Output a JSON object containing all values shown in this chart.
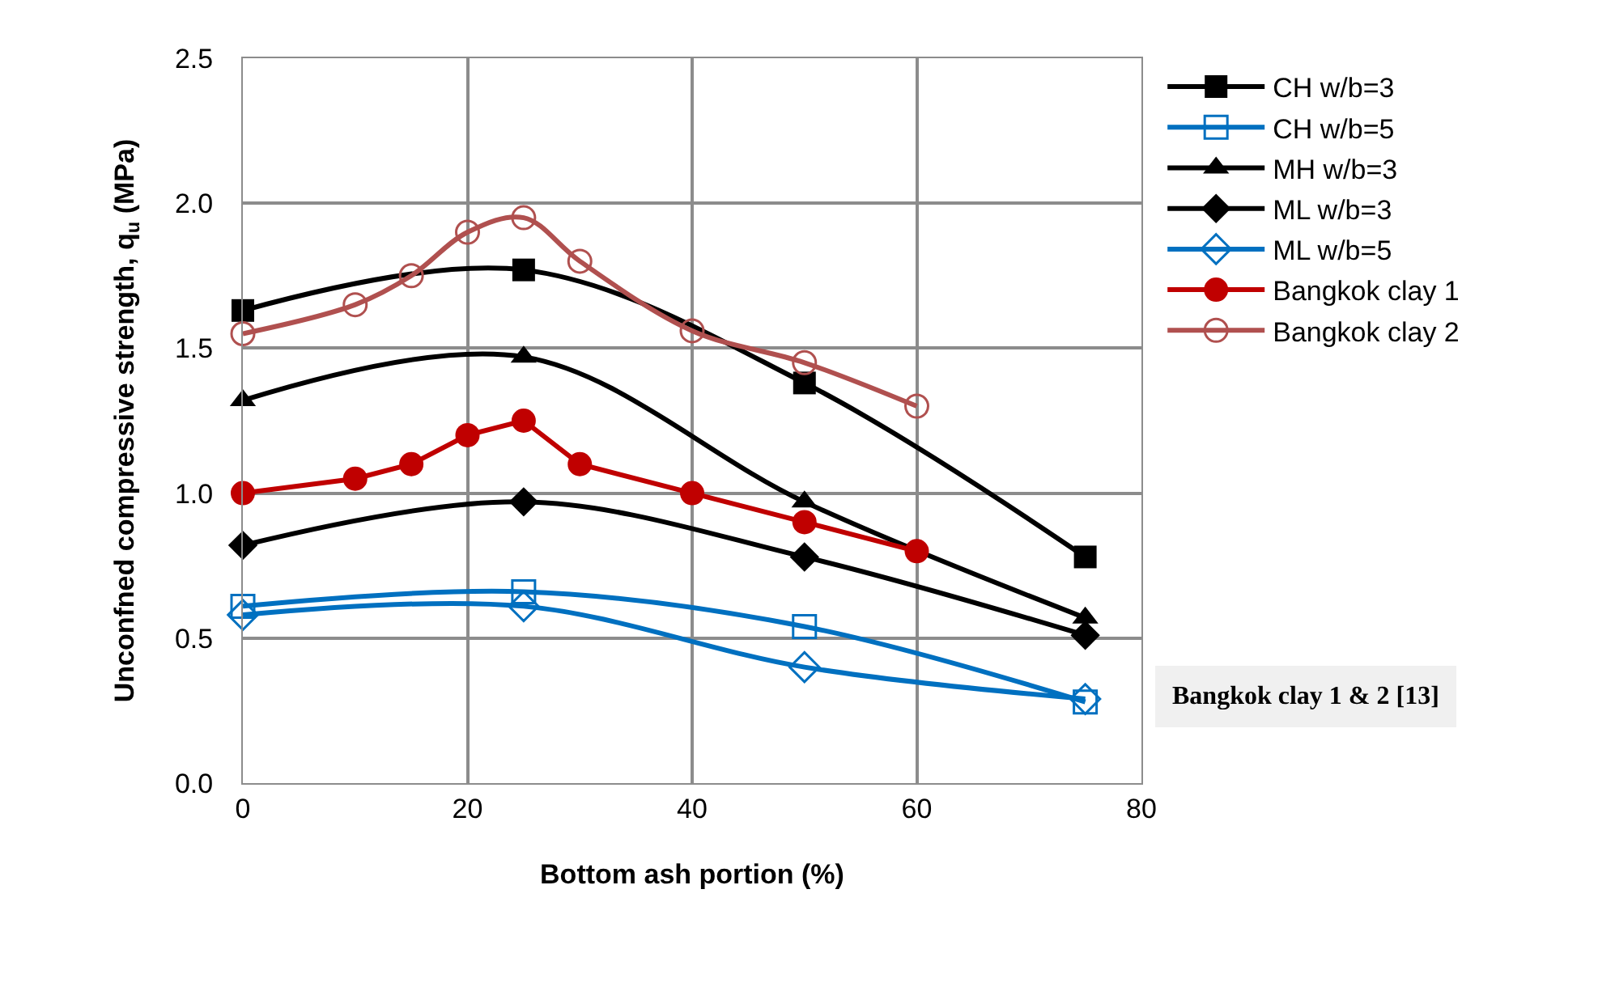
{
  "chart_data": {
    "type": "line",
    "xlabel": "Bottom ash portion (%)",
    "ylabel": "Unconfned compressive strength, q$_{u}$ (MPa)",
    "xlim": [
      0,
      80
    ],
    "xticks": [
      0,
      20,
      40,
      60,
      80
    ],
    "ylim": [
      0,
      2.5
    ],
    "yticks": [
      {
        "value": 0,
        "label": "0.0"
      },
      {
        "value": 0.5,
        "label": "0.5"
      },
      {
        "value": 1,
        "label": "1.0"
      },
      {
        "value": 1.5,
        "label": "1.5"
      },
      {
        "value": 2,
        "label": "2.0"
      },
      {
        "value": 2.5,
        "label": "2.5"
      }
    ],
    "grid": true,
    "legend": "right",
    "line_style": "solid",
    "annotations": [
      "Bangkok clay 1 & 2 [13]"
    ],
    "series": [
      {
        "name": "CH w/b=3",
        "color": "#000000",
        "marker": "square",
        "x": [
          0,
          25,
          50,
          75
        ],
        "values": [
          1.63,
          1.77,
          1.38,
          0.78
        ]
      },
      {
        "name": "CH w/b=5",
        "color": "#0070c0",
        "marker": "square-open",
        "x": [
          0,
          25,
          50,
          75
        ],
        "values": [
          0.61,
          0.66,
          0.54,
          0.28
        ]
      },
      {
        "name": "MH w/b=3",
        "color": "#000000",
        "marker": "triangle",
        "x": [
          0,
          25,
          50,
          75
        ],
        "values": [
          1.32,
          1.47,
          0.97,
          0.57
        ]
      },
      {
        "name": "ML w/b=3",
        "color": "#000000",
        "marker": "diamond",
        "x": [
          0,
          25,
          50,
          75
        ],
        "values": [
          0.82,
          0.97,
          0.78,
          0.51
        ]
      },
      {
        "name": "ML w/b=5",
        "color": "#0070c0",
        "marker": "diamond-open",
        "x": [
          0,
          25,
          50,
          75
        ],
        "values": [
          0.58,
          0.61,
          0.4,
          0.29
        ]
      },
      {
        "name": "Bangkok clay 1",
        "color": "#c00000",
        "marker": "circle",
        "x": [
          0,
          10,
          15,
          20,
          25,
          30,
          40,
          50,
          60
        ],
        "values": [
          1.0,
          1.05,
          1.1,
          1.2,
          1.25,
          1.1,
          1.0,
          0.9,
          0.8
        ]
      },
      {
        "name": "Bangkok clay 2",
        "color": "#b0504f",
        "marker": "circle-open",
        "x": [
          0,
          10,
          15,
          20,
          25,
          30,
          40,
          50,
          60
        ],
        "values": [
          1.55,
          1.65,
          1.75,
          1.9,
          1.95,
          1.8,
          1.56,
          1.45,
          1.3
        ]
      }
    ]
  }
}
